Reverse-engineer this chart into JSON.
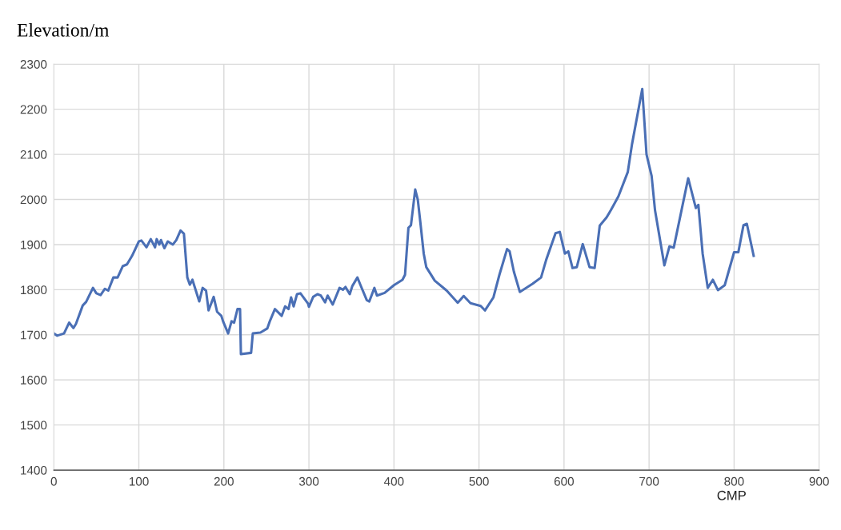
{
  "chart_data": {
    "type": "line",
    "title": "Elevation/m",
    "xlabel": "CMP",
    "xlim": [
      0,
      900
    ],
    "xticks": [
      0,
      100,
      200,
      300,
      400,
      500,
      600,
      700,
      800,
      900
    ],
    "ylim": [
      1400,
      2300
    ],
    "yticks": [
      1400,
      1500,
      1600,
      1700,
      1800,
      1900,
      2000,
      2100,
      2200,
      2300
    ],
    "grid": true,
    "marker": "none",
    "line_style": "solid",
    "series": [
      {
        "color": "#4a6fb5",
        "x": [
          0,
          4,
          12,
          18,
          23,
          26,
          34,
          38,
          46,
          50,
          55,
          60,
          64,
          70,
          75,
          81,
          86,
          92,
          100,
          103,
          109,
          114,
          119,
          121,
          124,
          126,
          130,
          134,
          140,
          144,
          149,
          153,
          157,
          160,
          163,
          171,
          175,
          179,
          182,
          188,
          192,
          197,
          199,
          205,
          209,
          212,
          216,
          219,
          220,
          232,
          234,
          243,
          251,
          254,
          260,
          268,
          272,
          276,
          279,
          282,
          286,
          290,
          299,
          300,
          305,
          310,
          314,
          319,
          322,
          328,
          336,
          340,
          343,
          348,
          351,
          357,
          360,
          368,
          371,
          377,
          380,
          389,
          400,
          410,
          413,
          417,
          420,
          425,
          428,
          431,
          435,
          438,
          448,
          462,
          475,
          482,
          490,
          502,
          507,
          517,
          524,
          533,
          536,
          541,
          548,
          563,
          573,
          579,
          590,
          595,
          601,
          605,
          610,
          615,
          622,
          630,
          636,
          642,
          650,
          655,
          664,
          675,
          680,
          692,
          697,
          703,
          707,
          718,
          724,
          729,
          746,
          755,
          758,
          763,
          769,
          775,
          781,
          789,
          800,
          805,
          811,
          815,
          823
        ],
        "values": [
          1703,
          1698,
          1703,
          1727,
          1715,
          1724,
          1765,
          1773,
          1804,
          1792,
          1788,
          1802,
          1798,
          1827,
          1827,
          1852,
          1856,
          1875,
          1907,
          1909,
          1894,
          1912,
          1894,
          1912,
          1900,
          1910,
          1892,
          1907,
          1900,
          1910,
          1931,
          1924,
          1827,
          1811,
          1822,
          1774,
          1804,
          1798,
          1754,
          1784,
          1751,
          1742,
          1730,
          1703,
          1730,
          1727,
          1757,
          1757,
          1657,
          1660,
          1703,
          1705,
          1714,
          1730,
          1757,
          1742,
          1763,
          1757,
          1783,
          1763,
          1790,
          1792,
          1769,
          1762,
          1784,
          1790,
          1787,
          1772,
          1787,
          1767,
          1804,
          1800,
          1806,
          1790,
          1808,
          1827,
          1813,
          1777,
          1774,
          1804,
          1787,
          1793,
          1810,
          1822,
          1833,
          1937,
          1943,
          2022,
          2000,
          1950,
          1880,
          1850,
          1820,
          1798,
          1771,
          1786,
          1770,
          1764,
          1754,
          1783,
          1833,
          1890,
          1885,
          1840,
          1795,
          1813,
          1827,
          1866,
          1925,
          1928,
          1880,
          1885,
          1848,
          1850,
          1901,
          1850,
          1848,
          1942,
          1960,
          1976,
          2007,
          2061,
          2123,
          2245,
          2100,
          2052,
          1976,
          1854,
          1896,
          1893,
          2047,
          1981,
          1988,
          1880,
          1804,
          1822,
          1799,
          1810,
          1883,
          1883,
          1943,
          1946,
          1875
        ]
      }
    ]
  }
}
